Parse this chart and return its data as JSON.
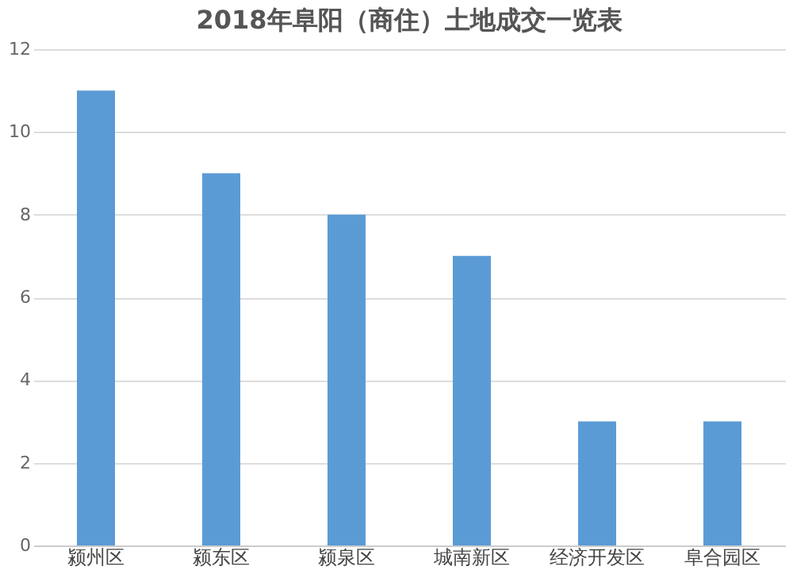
{
  "chart_data": {
    "type": "bar",
    "title": "2018年阜阳（商住）土地成交一览表",
    "categories": [
      "颍州区",
      "颍东区",
      "颍泉区",
      "城南新区",
      "经济开发区",
      "阜合园区"
    ],
    "values": [
      11,
      9,
      8,
      7,
      3,
      3
    ],
    "color": "#5b9bd5",
    "ylim": [
      0,
      12
    ],
    "yticks": [
      0,
      2,
      4,
      6,
      8,
      10,
      12
    ],
    "grid": "y"
  }
}
